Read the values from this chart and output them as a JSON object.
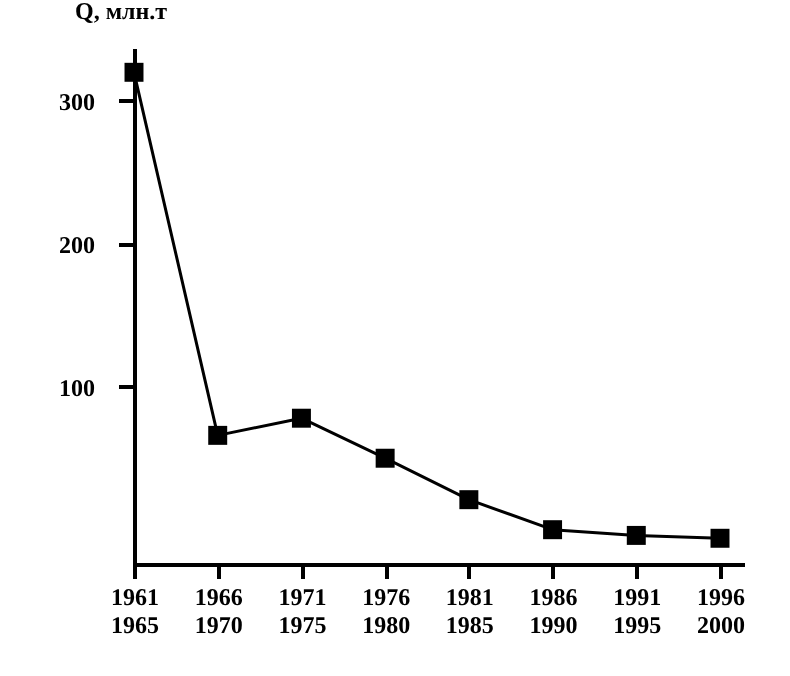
{
  "chart_data": {
    "type": "line",
    "ylabel": "Q, млн.т",
    "categories": [
      "1961\n1965",
      "1966\n1970",
      "1971\n1975",
      "1976\n1980",
      "1981\n1985",
      "1986\n1990",
      "1991\n1995",
      "1996\n2000"
    ],
    "series": [
      {
        "color": "#000000",
        "values": [
          320,
          66,
          78,
          50,
          21,
          0,
          -4,
          -6
        ]
      }
    ],
    "ylim": [
      -24,
      337
    ],
    "yticks": [
      100,
      200,
      300
    ],
    "grid": false,
    "marker": "square",
    "line_style": "solid"
  }
}
